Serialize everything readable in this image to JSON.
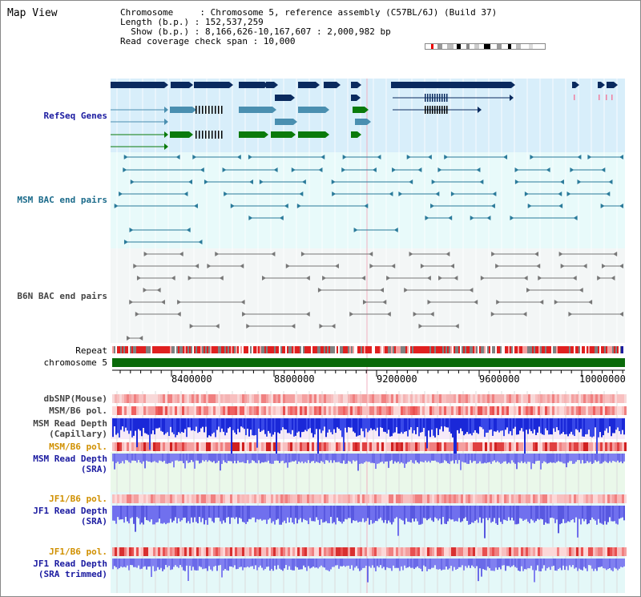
{
  "header": {
    "view_title": "Map View",
    "chromosome_line": "Chromosome     : Chromosome 5, reference assembly (C57BL/6J) (Build 37)",
    "length_line": "Length (b.p.) : 152,537,259",
    "show_line": "  Show (b.p.) : 8,166,626-10,167,607 : 2,000,982 bp",
    "coverage_line": "Read coverage check span : 10,000"
  },
  "tracks": {
    "refseq": "RefSeq Genes",
    "msm_bac": "MSM BAC end pairs",
    "b6n_bac": "B6N BAC end pairs",
    "repeat": "Repeat",
    "chromosome": "chromosome 5",
    "dbsnp": "dbSNP(Mouse)",
    "msm_b6_pol": "MSM/B6 pol.",
    "msm_cap": "MSM Read Depth\n(Capillary)",
    "msm_b6_pol2": "MSM/B6 pol.",
    "msm_sra": "MSM Read Depth\n(SRA)",
    "jf1_b6_pol": "JF1/B6 pol.",
    "jf1_sra": "JF1 Read Depth\n(SRA)",
    "jf1_b6_pol2": "JF1/B6 pol.",
    "jf1_sra_trim": "JF1 Read Depth\n(SRA trimmed)"
  },
  "axis": {
    "ticks": [
      "8400000",
      "8800000",
      "9200000",
      "9600000",
      "10000000"
    ]
  },
  "colors": {
    "refseq_bg": "#d8eefa",
    "bac_bg": "#e8fafa",
    "b6n_bg": "#f3f6f6",
    "navy": "#0a2a5e",
    "teal": "#4a8fb0",
    "green": "#0a7a0a",
    "pink_dark": "#e05050",
    "pink_light": "#f6b0b0",
    "blue_dark": "#2030d0",
    "blue_light": "#7878f0",
    "label_blue": "#1a1aa0",
    "label_teal": "#1a6a8a",
    "label_orange": "#d09000",
    "label_gray": "#444444"
  }
}
